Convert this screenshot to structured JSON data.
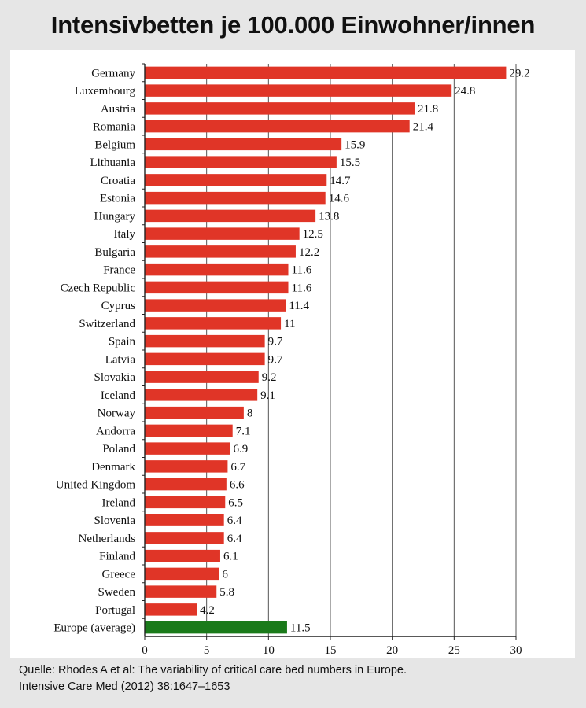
{
  "title": "Intensivbetten je 100.000 Einwohner/innen",
  "source": {
    "line1": "Quelle: Rhodes A et al: The variability of critical care bed numbers in Europe.",
    "line2": "Intensive Care Med (2012) 38:1647–1653"
  },
  "colors": {
    "bar": "#e03527",
    "highlight": "#1a7a1a",
    "grid": "#555555",
    "background": "#e6e6e6"
  },
  "chart_data": {
    "type": "bar",
    "orientation": "horizontal",
    "categories": [
      "Germany",
      "Luxembourg",
      "Austria",
      "Romania",
      "Belgium",
      "Lithuania",
      "Croatia",
      "Estonia",
      "Hungary",
      "Italy",
      "Bulgaria",
      "France",
      "Czech Republic",
      "Cyprus",
      "Switzerland",
      "Spain",
      "Latvia",
      "Slovakia",
      "Iceland",
      "Norway",
      "Andorra",
      "Poland",
      "Denmark",
      "United Kingdom",
      "Ireland",
      "Slovenia",
      "Netherlands",
      "Finland",
      "Greece",
      "Sweden",
      "Portugal",
      "Europe (average)"
    ],
    "values": [
      29.2,
      24.8,
      21.8,
      21.4,
      15.9,
      15.5,
      14.7,
      14.6,
      13.8,
      12.5,
      12.2,
      11.6,
      11.6,
      11.4,
      11,
      9.7,
      9.7,
      9.2,
      9.1,
      8,
      7.1,
      6.9,
      6.7,
      6.6,
      6.5,
      6.4,
      6.4,
      6.1,
      6,
      5.8,
      4.2,
      11.5
    ],
    "value_labels": [
      "29.2",
      "24.8",
      "21.8",
      "21.4",
      "15.9",
      "15.5",
      "14.7",
      "14.6",
      "13.8",
      "12.5",
      "12.2",
      "11.6",
      "11.6",
      "11.4",
      "11",
      "9.7",
      "9.7",
      "9.2",
      "9.1",
      "8",
      "7.1",
      "6.9",
      "6.7",
      "6.6",
      "6.5",
      "6.4",
      "6.4",
      "6.1",
      "6",
      "5.8",
      "4.2",
      "11.5"
    ],
    "highlight_category": "Europe (average)",
    "xlim": [
      0,
      30
    ],
    "xticks": [
      0,
      5,
      10,
      15,
      20,
      25,
      30
    ],
    "grid": "vertical",
    "xlabel": "",
    "ylabel": ""
  }
}
